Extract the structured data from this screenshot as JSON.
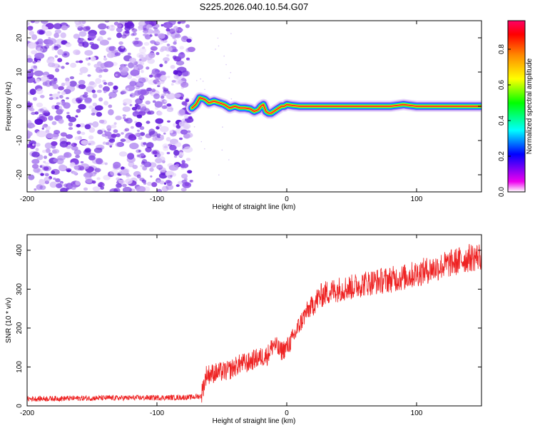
{
  "title": "S225.2026.040.10.54.G07",
  "colors": {
    "snr_line": "#ee2222",
    "colorbar": [
      "#ffffff",
      "#ee00ee",
      "#0000ff",
      "#00ffff",
      "#00ff00",
      "#ffff00",
      "#ff8800",
      "#ff0000"
    ],
    "noise_purple": "#7b2fe0"
  },
  "chart_data": [
    {
      "type": "heatmap",
      "title": "S225.2026.040.10.54.G07",
      "xlabel": "Height of straight line (km)",
      "ylabel": "Frequency (Hz)",
      "xlim": [
        -200,
        150
      ],
      "ylim": [
        -25,
        25
      ],
      "xticks": [
        -200,
        -100,
        0,
        100
      ],
      "yticks": [
        -20,
        -10,
        0,
        10,
        20
      ],
      "colorbar": {
        "label": "Normalized spectral amplitude",
        "range": [
          0,
          0.96
        ],
        "ticks": [
          0.0,
          0.2,
          0.4,
          0.6,
          0.8
        ]
      },
      "noise_region_x": [
        -200,
        -75
      ],
      "ridge": {
        "x": [
          -73,
          -70,
          -67,
          -63,
          -60,
          -56,
          -52,
          -48,
          -44,
          -40,
          -36,
          -32,
          -28,
          -25,
          -22,
          -20,
          -18,
          -16,
          -14,
          -12,
          -10,
          -8,
          -6,
          -4,
          -2,
          0,
          5,
          10,
          20,
          40,
          60,
          80,
          90,
          100,
          120,
          150
        ],
        "y": [
          -0.5,
          0.5,
          2.5,
          2.0,
          1.0,
          1.5,
          1.0,
          0.5,
          -0.5,
          0.0,
          -0.5,
          -0.5,
          -0.8,
          -1.5,
          -1.0,
          0.0,
          0.5,
          -1.5,
          -2.0,
          -2.0,
          -1.5,
          -1.0,
          -0.5,
          0.0,
          0.0,
          0.5,
          0.2,
          0.0,
          0.0,
          0.0,
          0.0,
          0.0,
          0.5,
          0.0,
          0.0,
          0.0
        ]
      }
    },
    {
      "type": "line",
      "xlabel": "Height of straight line (km)",
      "ylabel": "SNR (10 * v/v)",
      "xlim": [
        -200,
        150
      ],
      "ylim": [
        0,
        440
      ],
      "xticks": [
        -200,
        -100,
        0,
        100
      ],
      "yticks": [
        0,
        100,
        200,
        300,
        400
      ],
      "series": [
        {
          "name": "SNR",
          "x": [
            -200,
            -150,
            -100,
            -75,
            -66,
            -62,
            -55,
            -45,
            -40,
            -35,
            -30,
            -25,
            -20,
            -15,
            -10,
            -5,
            0,
            5,
            10,
            15,
            20,
            25,
            30,
            40,
            50,
            60,
            70,
            80,
            90,
            100,
            110,
            120,
            130,
            140,
            150
          ],
          "y": [
            18,
            20,
            21,
            22,
            25,
            80,
            85,
            90,
            100,
            110,
            110,
            120,
            125,
            130,
            160,
            140,
            150,
            175,
            210,
            240,
            260,
            280,
            290,
            300,
            305,
            315,
            320,
            325,
            330,
            340,
            350,
            360,
            370,
            380,
            385
          ]
        }
      ]
    }
  ]
}
